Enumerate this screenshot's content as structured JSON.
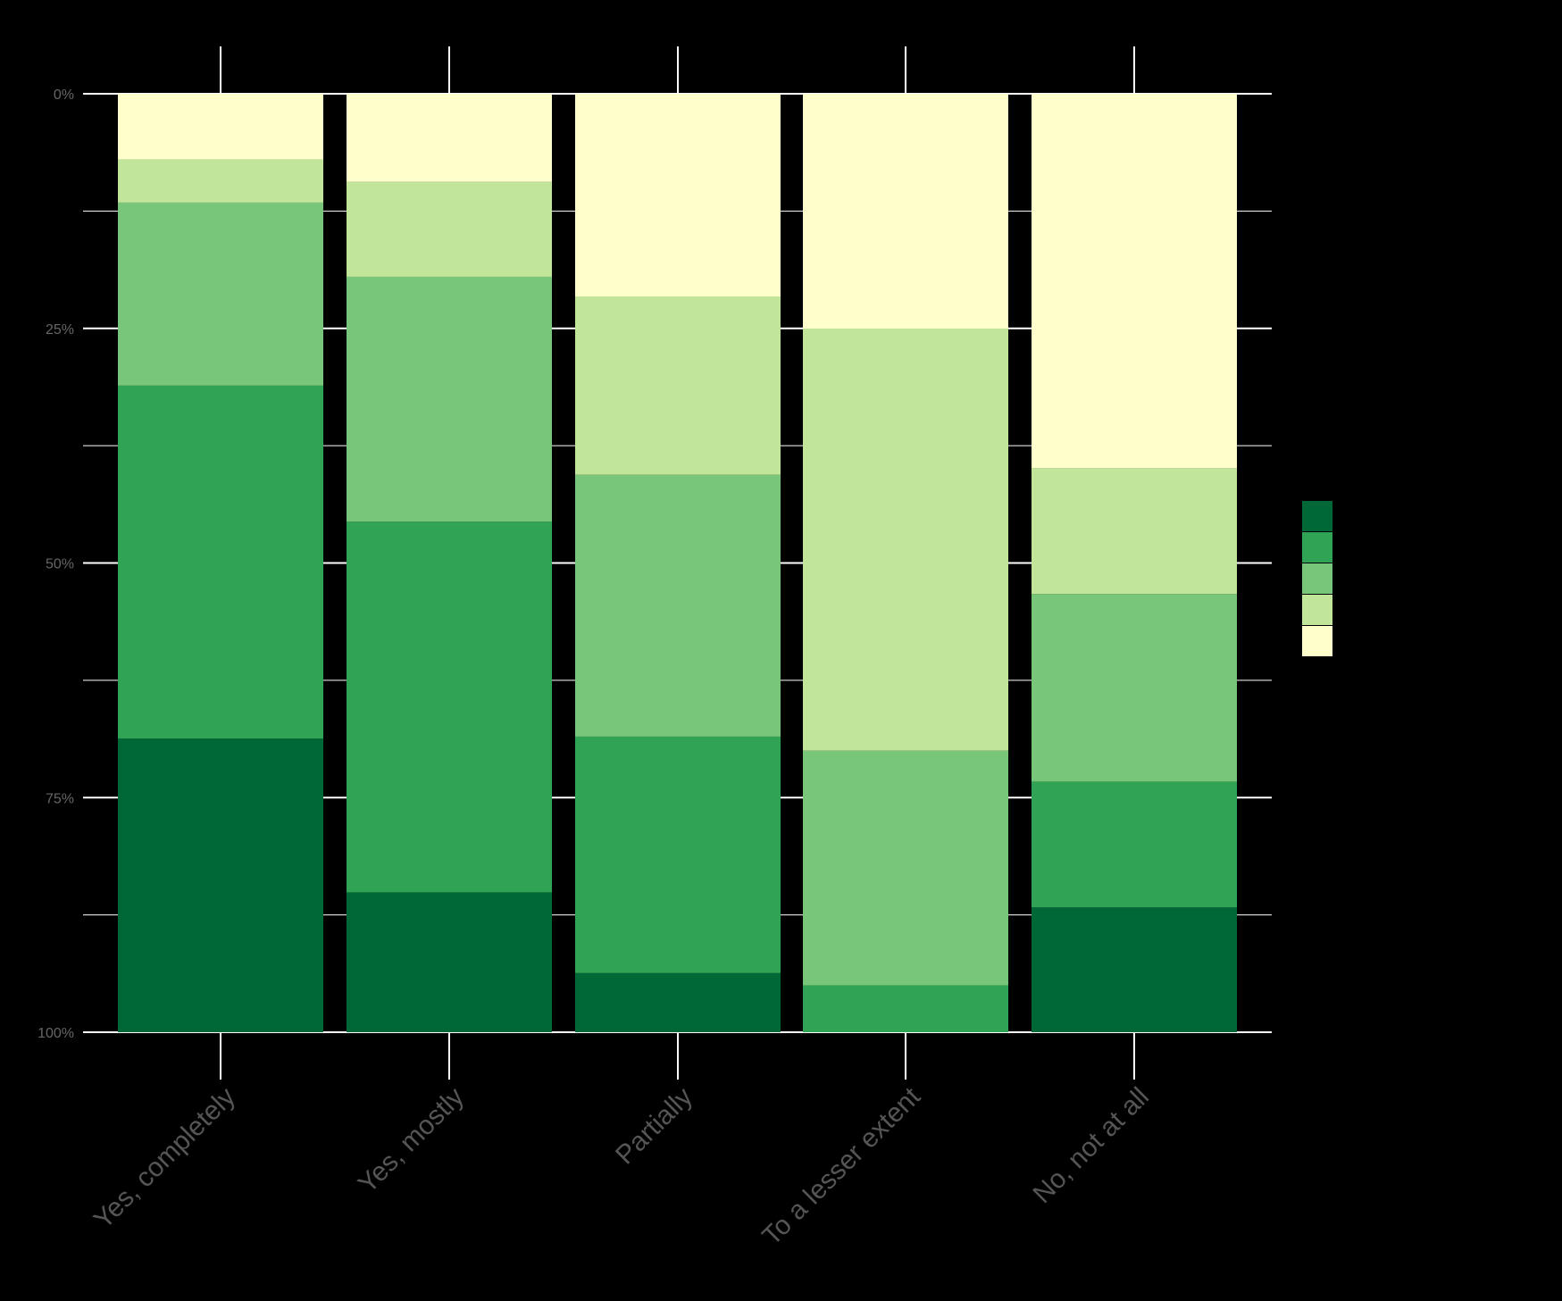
{
  "chart_data": {
    "type": "bar",
    "stacked": true,
    "normalized": true,
    "orientation": "vertical",
    "y_axis_reversed": true,
    "categories": [
      "Yes, completely",
      "Yes, mostly",
      "Partially",
      "To a lesser extent",
      "No, not at all"
    ],
    "ylim": [
      0,
      100
    ],
    "y_ticks": [
      0,
      25,
      50,
      75,
      100
    ],
    "y_tick_labels": [
      "0%",
      "25%",
      "50%",
      "75%",
      "100%"
    ],
    "y_minor_ticks": [
      12.5,
      37.5,
      62.5,
      87.5
    ],
    "series": [
      {
        "color": "#006837",
        "values": [
          31.3,
          14.9,
          6.3,
          0.0,
          13.3
        ]
      },
      {
        "color": "#31a354",
        "values": [
          37.6,
          39.5,
          25.2,
          5.0,
          13.4
        ]
      },
      {
        "color": "#78c679",
        "values": [
          19.5,
          26.1,
          27.9,
          25.0,
          20.0
        ]
      },
      {
        "color": "#c2e699",
        "values": [
          4.6,
          10.1,
          19.0,
          45.0,
          13.4
        ]
      },
      {
        "color": "#ffffcc",
        "values": [
          7.0,
          9.4,
          21.6,
          25.0,
          39.9
        ]
      }
    ],
    "grid": true,
    "legend_position": "right",
    "legend_colors": [
      "#006837",
      "#31a354",
      "#78c679",
      "#c2e699",
      "#ffffcc"
    ]
  }
}
